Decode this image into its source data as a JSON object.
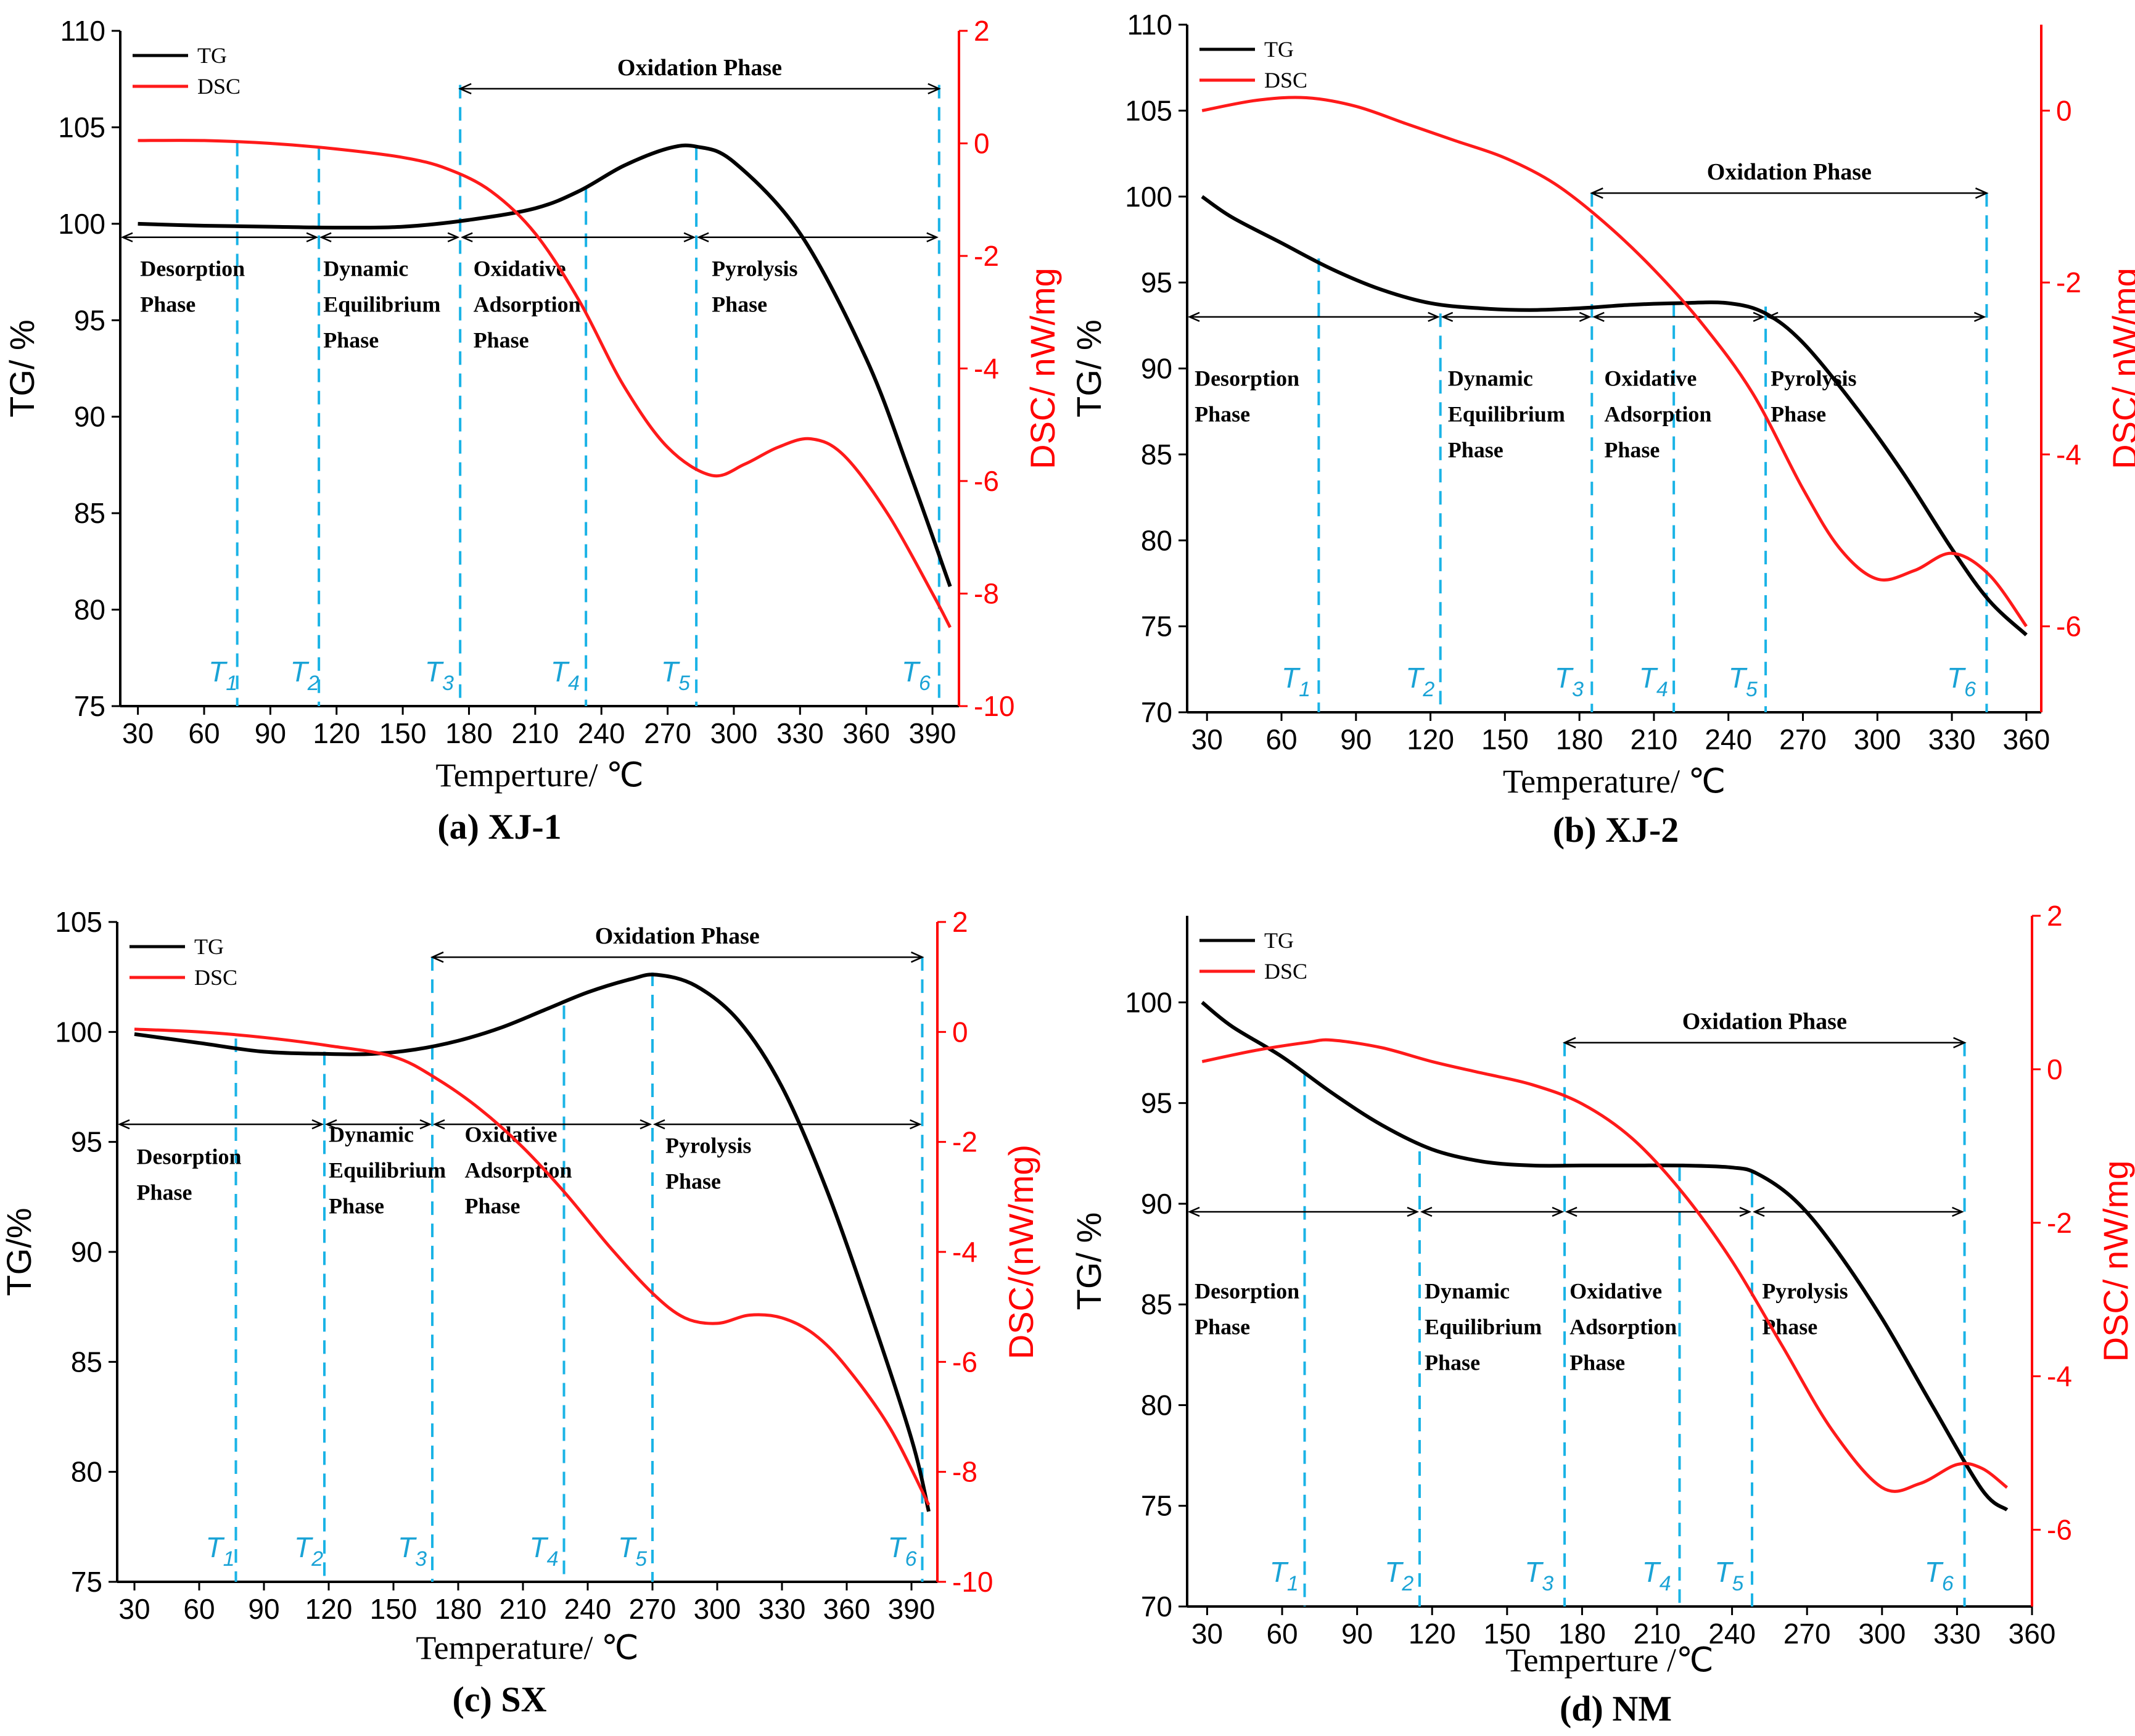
{
  "colors": {
    "tg": "#000000",
    "dsc": "#ff1a1a",
    "tmark": "#1ab3e6",
    "tlabel": "#1aa3d6"
  },
  "chart_data": [
    {
      "id": "a",
      "type": "line",
      "caption": "(a) XJ-1",
      "xlabel": "Temperture/ ℃",
      "ylabel_left": "TG/ %",
      "ylabel_right": "DSC/ nW/mg",
      "xlim": [
        22,
        402
      ],
      "xticks": [
        30,
        60,
        90,
        120,
        150,
        180,
        210,
        240,
        270,
        300,
        330,
        360,
        390
      ],
      "ylim_left": [
        75,
        110
      ],
      "yticks_left": [
        75,
        80,
        85,
        90,
        95,
        100,
        105,
        110
      ],
      "ylim_right": [
        -10,
        2
      ],
      "yticks_right": [
        -10,
        -8,
        -6,
        -4,
        -2,
        0,
        2
      ],
      "legend": [
        "TG",
        "DSC"
      ],
      "oxidation_label": "Oxidation Phase",
      "oxidation_range": [
        176,
        393
      ],
      "oxidation_y": 107,
      "phase_arrow_y": 99.3,
      "phase_bounds": [
        22,
        112,
        176,
        283,
        393
      ],
      "phases": [
        {
          "lines": [
            "Desorption",
            "Phase"
          ],
          "x": 31,
          "y": 97.3
        },
        {
          "lines": [
            "Dynamic",
            "Equilibrium",
            "Phase"
          ],
          "x": 114,
          "y": 97.3
        },
        {
          "lines": [
            "Oxidative",
            "Adsorption",
            "Phase"
          ],
          "x": 182,
          "y": 97.3
        },
        {
          "lines": [
            "Pyrolysis",
            "Phase"
          ],
          "x": 290,
          "y": 97.3
        }
      ],
      "t_markers": [
        {
          "name": "T",
          "sub": "1",
          "x": 75,
          "label_x": 62,
          "top": 104.2
        },
        {
          "name": "T",
          "sub": "2",
          "x": 112,
          "label_x": 99,
          "top": 104.0
        },
        {
          "name": "T",
          "sub": "3",
          "x": 176,
          "label_x": 160,
          "top": 107.2
        },
        {
          "name": "T",
          "sub": "4",
          "x": 233,
          "label_x": 217,
          "top": 101.8
        },
        {
          "name": "T",
          "sub": "5",
          "x": 283,
          "label_x": 267,
          "top": 104.0
        },
        {
          "name": "T",
          "sub": "6",
          "x": 393,
          "label_x": 376,
          "top": 107.2
        }
      ],
      "series": [
        {
          "name": "TG",
          "axis": "left",
          "x": [
            30,
            60,
            90,
            120,
            150,
            180,
            210,
            230,
            250,
            270,
            283,
            300,
            330,
            360,
            380,
            398
          ],
          "y": [
            100.0,
            99.9,
            99.85,
            99.8,
            99.85,
            100.2,
            100.8,
            101.7,
            103.0,
            103.9,
            104.0,
            103.2,
            99.5,
            93.0,
            87.0,
            81.2
          ]
        },
        {
          "name": "DSC",
          "axis": "right",
          "x": [
            30,
            60,
            90,
            120,
            150,
            170,
            190,
            210,
            230,
            250,
            270,
            290,
            305,
            320,
            335,
            350,
            370,
            390,
            398
          ],
          "y": [
            0.05,
            0.05,
            0.0,
            -0.1,
            -0.25,
            -0.45,
            -0.85,
            -1.6,
            -2.8,
            -4.3,
            -5.4,
            -5.9,
            -5.7,
            -5.4,
            -5.25,
            -5.55,
            -6.6,
            -8.0,
            -8.6
          ]
        }
      ]
    },
    {
      "id": "b",
      "type": "line",
      "caption": "(b) XJ-2",
      "xlabel": "Temperature/ ℃",
      "ylabel_left": "TG/ %",
      "ylabel_right": "DSC/ nW/mg",
      "xlim": [
        22,
        366
      ],
      "xticks": [
        30,
        60,
        90,
        120,
        150,
        180,
        210,
        240,
        270,
        300,
        330,
        360
      ],
      "ylim_left": [
        70,
        110
      ],
      "yticks_left": [
        70,
        75,
        80,
        85,
        90,
        95,
        100,
        105,
        110
      ],
      "ylim_right": [
        -7,
        1
      ],
      "yticks_right": [
        -6,
        -4,
        -2,
        0
      ],
      "legend": [
        "TG",
        "DSC"
      ],
      "oxidation_label": "Oxidation Phase",
      "oxidation_range": [
        185,
        344
      ],
      "oxidation_y": 100.2,
      "phase_arrow_y": 93.0,
      "phase_bounds": [
        22,
        124,
        185,
        255,
        344
      ],
      "phases": [
        {
          "lines": [
            "Desorption",
            "Phase"
          ],
          "x": 25,
          "y": 89.0
        },
        {
          "lines": [
            "Dynamic",
            "Equilibrium",
            "Phase"
          ],
          "x": 127,
          "y": 89.0
        },
        {
          "lines": [
            "Oxidative",
            "Adsorption",
            "Phase"
          ],
          "x": 190,
          "y": 89.0
        },
        {
          "lines": [
            "Pyrolysis",
            "Phase"
          ],
          "x": 257,
          "y": 89.0
        }
      ],
      "t_markers": [
        {
          "name": "T",
          "sub": "1",
          "x": 75,
          "label_x": 60,
          "top": 96.4
        },
        {
          "name": "T",
          "sub": "2",
          "x": 124,
          "label_x": 110,
          "top": 93.2
        },
        {
          "name": "T",
          "sub": "3",
          "x": 185,
          "label_x": 170,
          "top": 100.2
        },
        {
          "name": "T",
          "sub": "4",
          "x": 218,
          "label_x": 204,
          "top": 93.8
        },
        {
          "name": "T",
          "sub": "5",
          "x": 255,
          "label_x": 240,
          "top": 93.6
        },
        {
          "name": "T",
          "sub": "6",
          "x": 344,
          "label_x": 328,
          "top": 100.2
        }
      ],
      "series": [
        {
          "name": "TG",
          "axis": "left",
          "x": [
            28,
            40,
            60,
            80,
            100,
            120,
            140,
            160,
            180,
            200,
            220,
            240,
            255,
            270,
            290,
            310,
            330,
            345,
            360
          ],
          "y": [
            100.0,
            98.8,
            97.3,
            95.8,
            94.6,
            93.8,
            93.5,
            93.4,
            93.5,
            93.7,
            93.8,
            93.8,
            93.2,
            91.5,
            88.0,
            84.0,
            79.5,
            76.5,
            74.5
          ]
        },
        {
          "name": "DSC",
          "axis": "right",
          "x": [
            28,
            50,
            70,
            90,
            110,
            130,
            150,
            170,
            190,
            210,
            230,
            250,
            270,
            285,
            300,
            315,
            330,
            345,
            360
          ],
          "y": [
            0.0,
            0.12,
            0.15,
            0.05,
            -0.15,
            -0.35,
            -0.55,
            -0.85,
            -1.3,
            -1.85,
            -2.5,
            -3.3,
            -4.4,
            -5.1,
            -5.45,
            -5.35,
            -5.15,
            -5.4,
            -6.0
          ]
        }
      ]
    },
    {
      "id": "c",
      "type": "line",
      "caption": "(c) SX",
      "xlabel": "Temperature/ ℃",
      "ylabel_left": "TG/%",
      "ylabel_right": "DSC/(nW/mg)",
      "xlim": [
        22,
        402
      ],
      "xticks": [
        30,
        60,
        90,
        120,
        150,
        180,
        210,
        240,
        270,
        300,
        330,
        360,
        390
      ],
      "ylim_left": [
        75,
        105
      ],
      "yticks_left": [
        75,
        80,
        85,
        90,
        95,
        100,
        105
      ],
      "ylim_right": [
        -10,
        2
      ],
      "yticks_right": [
        -10,
        -8,
        -6,
        -4,
        -2,
        0,
        2
      ],
      "legend": [
        "TG",
        "DSC"
      ],
      "oxidation_label": "Oxidation Phase",
      "oxidation_range": [
        168,
        395
      ],
      "oxidation_y": 103.4,
      "phase_arrow_y": 95.8,
      "phase_bounds": [
        22,
        118,
        168,
        270,
        395
      ],
      "phases": [
        {
          "lines": [
            "Desorption",
            "Phase"
          ],
          "x": 31,
          "y": 94.0
        },
        {
          "lines": [
            "Dynamic",
            "Equilibrium",
            "Phase"
          ],
          "x": 120,
          "y": 95.0
        },
        {
          "lines": [
            "Oxidative",
            "Adsorption",
            "Phase"
          ],
          "x": 183,
          "y": 95.0
        },
        {
          "lines": [
            "Pyrolysis",
            "Phase"
          ],
          "x": 276,
          "y": 94.5
        }
      ],
      "t_markers": [
        {
          "name": "T",
          "sub": "1",
          "x": 77,
          "label_x": 63,
          "top": 99.7
        },
        {
          "name": "T",
          "sub": "2",
          "x": 118,
          "label_x": 104,
          "top": 99.1
        },
        {
          "name": "T",
          "sub": "3",
          "x": 168,
          "label_x": 152,
          "top": 103.4
        },
        {
          "name": "T",
          "sub": "4",
          "x": 229,
          "label_x": 213,
          "top": 101.2
        },
        {
          "name": "T",
          "sub": "5",
          "x": 270,
          "label_x": 254,
          "top": 102.7
        },
        {
          "name": "T",
          "sub": "6",
          "x": 395,
          "label_x": 379,
          "top": 103.4
        }
      ],
      "series": [
        {
          "name": "TG",
          "axis": "left",
          "x": [
            30,
            60,
            90,
            120,
            140,
            160,
            180,
            200,
            220,
            240,
            260,
            272,
            290,
            310,
            330,
            350,
            370,
            390,
            398
          ],
          "y": [
            99.9,
            99.5,
            99.1,
            99.0,
            99.0,
            99.2,
            99.6,
            100.2,
            101.0,
            101.8,
            102.4,
            102.6,
            102.1,
            100.5,
            97.5,
            93.0,
            87.5,
            81.5,
            78.2
          ]
        },
        {
          "name": "DSC",
          "axis": "right",
          "x": [
            30,
            60,
            90,
            120,
            150,
            170,
            190,
            210,
            230,
            250,
            270,
            285,
            300,
            315,
            330,
            345,
            360,
            380,
            398
          ],
          "y": [
            0.05,
            0.0,
            -0.1,
            -0.25,
            -0.45,
            -0.85,
            -1.4,
            -2.1,
            -2.95,
            -3.9,
            -4.75,
            -5.2,
            -5.3,
            -5.15,
            -5.2,
            -5.5,
            -6.1,
            -7.2,
            -8.6
          ]
        }
      ]
    },
    {
      "id": "d",
      "type": "line",
      "caption": "(d) NM",
      "xlabel": "Temperture /℃",
      "ylabel_left": "TG/ %",
      "ylabel_right": "DSC/ nW/mg",
      "xlim": [
        22,
        360
      ],
      "xticks": [
        30,
        60,
        90,
        120,
        150,
        180,
        210,
        240,
        270,
        300,
        330,
        360
      ],
      "ylim_left": [
        70,
        104.3
      ],
      "yticks_left": [
        70,
        75,
        80,
        85,
        90,
        95,
        100
      ],
      "ylim_right": [
        -7,
        2
      ],
      "yticks_right": [
        -6,
        -4,
        -2,
        0,
        2
      ],
      "legend": [
        "TG",
        "DSC"
      ],
      "oxidation_label": "Oxidation Phase",
      "oxidation_range": [
        173,
        333
      ],
      "oxidation_y": 98.0,
      "phase_arrow_y": 89.6,
      "phase_bounds": [
        22,
        115,
        173,
        248,
        333
      ],
      "phases": [
        {
          "lines": [
            "Desorption",
            "Phase"
          ],
          "x": 25,
          "y": 85.3
        },
        {
          "lines": [
            "Dynamic",
            "Equilibrium",
            "Phase"
          ],
          "x": 117,
          "y": 85.3
        },
        {
          "lines": [
            "Oxidative",
            "Adsorption",
            "Phase"
          ],
          "x": 175,
          "y": 85.3
        },
        {
          "lines": [
            "Pyrolysis",
            "Phase"
          ],
          "x": 252,
          "y": 85.3
        }
      ],
      "t_markers": [
        {
          "name": "T",
          "sub": "1",
          "x": 69,
          "label_x": 55,
          "top": 96.5
        },
        {
          "name": "T",
          "sub": "2",
          "x": 115,
          "label_x": 101,
          "top": 92.6
        },
        {
          "name": "T",
          "sub": "3",
          "x": 173,
          "label_x": 157,
          "top": 98.0
        },
        {
          "name": "T",
          "sub": "4",
          "x": 219,
          "label_x": 204,
          "top": 91.8
        },
        {
          "name": "T",
          "sub": "5",
          "x": 248,
          "label_x": 233,
          "top": 91.6
        },
        {
          "name": "T",
          "sub": "6",
          "x": 333,
          "label_x": 317,
          "top": 98.0
        }
      ],
      "series": [
        {
          "name": "TG",
          "axis": "left",
          "x": [
            28,
            40,
            60,
            80,
            100,
            120,
            140,
            160,
            180,
            200,
            220,
            240,
            250,
            265,
            280,
            300,
            320,
            340,
            350
          ],
          "y": [
            100.0,
            98.8,
            97.3,
            95.5,
            93.9,
            92.7,
            92.1,
            91.9,
            91.9,
            91.9,
            91.9,
            91.8,
            91.5,
            90.2,
            88.0,
            84.3,
            80.0,
            75.8,
            74.8
          ]
        },
        {
          "name": "DSC",
          "axis": "right",
          "x": [
            28,
            50,
            70,
            80,
            100,
            120,
            140,
            160,
            180,
            200,
            220,
            240,
            260,
            280,
            300,
            315,
            330,
            340,
            350
          ],
          "y": [
            0.1,
            0.25,
            0.35,
            0.38,
            0.28,
            0.1,
            -0.05,
            -0.2,
            -0.45,
            -0.9,
            -1.6,
            -2.5,
            -3.6,
            -4.7,
            -5.45,
            -5.4,
            -5.15,
            -5.2,
            -5.45
          ]
        }
      ]
    }
  ]
}
